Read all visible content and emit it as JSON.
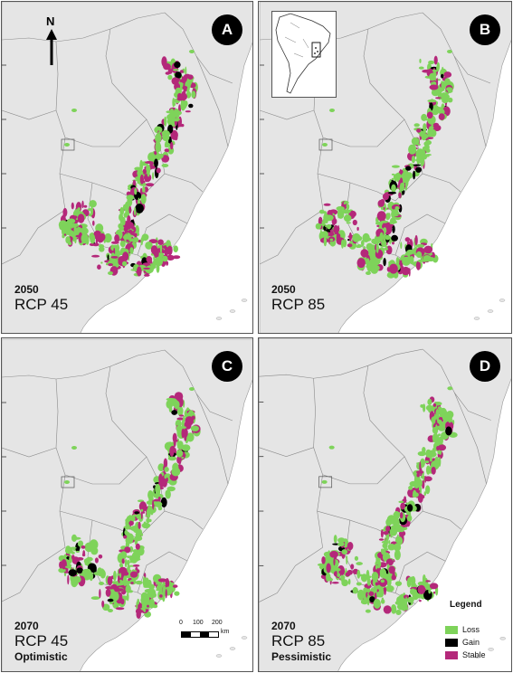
{
  "panels": [
    {
      "id": "A",
      "year": "2050",
      "scenario": "RCP 45",
      "variant": ""
    },
    {
      "id": "B",
      "year": "2050",
      "scenario": "RCP 85",
      "variant": ""
    },
    {
      "id": "C",
      "year": "2070",
      "scenario": "RCP 45",
      "variant": "Optimistic"
    },
    {
      "id": "D",
      "year": "2070",
      "scenario": "RCP 85",
      "variant": "Pessimistic"
    }
  ],
  "north_arrow": {
    "label": "N"
  },
  "scale_bar": {
    "labels": [
      "0",
      "100",
      "200"
    ],
    "unit": "km"
  },
  "legend": {
    "title": "Legend",
    "items": [
      {
        "label": "Loss",
        "color": "#7ed35a"
      },
      {
        "label": "Gain",
        "color": "#000000"
      },
      {
        "label": "Stable",
        "color": "#b4287a"
      }
    ]
  },
  "colors": {
    "land": "#e5e5e5",
    "sea": "#ffffff",
    "borders": "#8a8a8a"
  }
}
